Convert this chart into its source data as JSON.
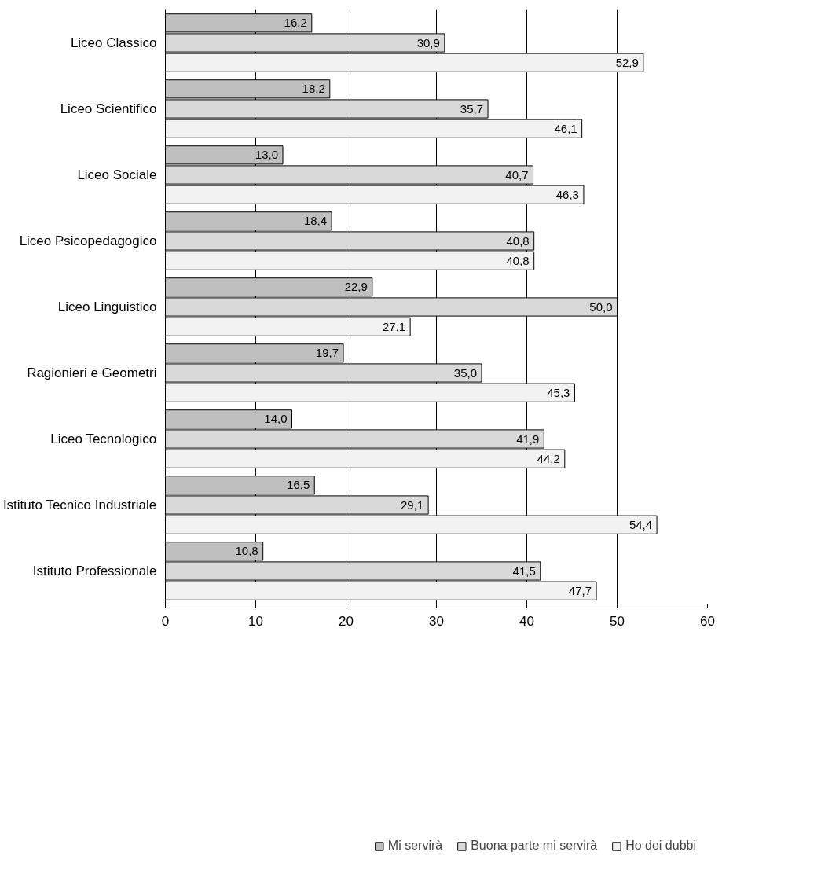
{
  "chart_data": {
    "type": "bar",
    "orientation": "horizontal",
    "categories": [
      "Liceo Classico",
      "Liceo Scientifico",
      "Liceo Sociale",
      "Liceo Psicopedagogico",
      "Liceo Linguistico",
      "Ragionieri e Geometri",
      "Liceo Tecnologico",
      "Istituto Tecnico Industriale",
      "Istituto Professionale"
    ],
    "series": [
      {
        "name": "Mi servirà",
        "color": "#bfbfbf",
        "values": [
          16.2,
          18.2,
          13.0,
          18.4,
          22.9,
          19.7,
          14.0,
          16.5,
          10.8
        ],
        "value_labels": [
          "16,2",
          "18,2",
          "13,0",
          "18,4",
          "22,9",
          "19,7",
          "14,0",
          "16,5",
          "10,8"
        ]
      },
      {
        "name": "Buona parte mi servirà",
        "color": "#d9d9d9",
        "values": [
          30.9,
          35.7,
          40.7,
          40.8,
          50.0,
          35.0,
          41.9,
          29.1,
          41.5
        ],
        "value_labels": [
          "30,9",
          "35,7",
          "40,7",
          "40,8",
          "50,0",
          "35,0",
          "41,9",
          "29,1",
          "41,5"
        ]
      },
      {
        "name": "Ho dei dubbi",
        "color": "#f2f2f2",
        "values": [
          52.9,
          46.1,
          46.3,
          40.8,
          27.1,
          45.3,
          44.2,
          54.4,
          47.7
        ],
        "value_labels": [
          "52,9",
          "46,1",
          "46,3",
          "40,8",
          "27,1",
          "45,3",
          "44,2",
          "54,4",
          "47,7"
        ]
      }
    ],
    "xlim": [
      0,
      60
    ],
    "xticks": [
      0,
      10,
      20,
      30,
      40,
      50,
      60
    ],
    "grid": "x",
    "legend": "bottom"
  }
}
